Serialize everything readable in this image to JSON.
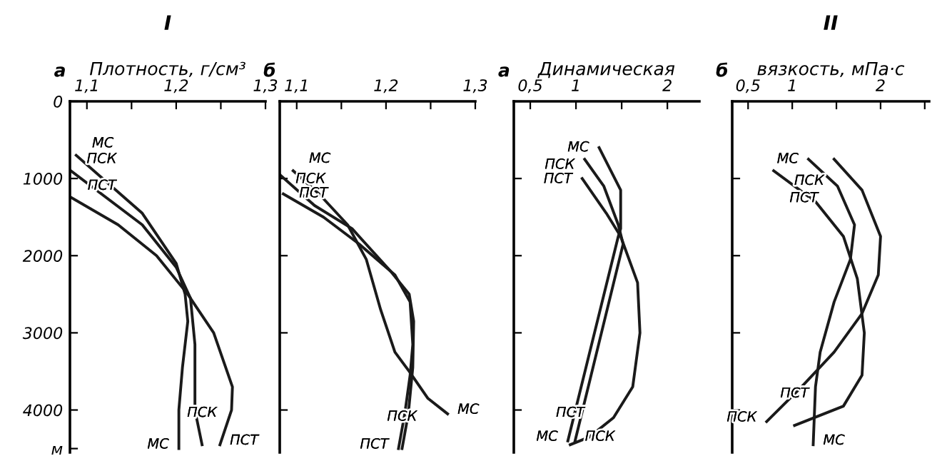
{
  "chart_data": [
    {
      "type": "line",
      "title": "I",
      "xlabel": "Плотность, г/см³",
      "annotations": [
        "а"
      ],
      "xlim": [
        1.081,
        1.3
      ],
      "ylim": [
        4550,
        0
      ],
      "xticks": [
        {
          "value": 1.1,
          "label": "1,1"
        },
        {
          "value": 1.15,
          "label": null
        },
        {
          "value": 1.2,
          "label": "1,2"
        },
        {
          "value": 1.25,
          "label": null
        },
        {
          "value": 1.3,
          "label": "1,3"
        }
      ],
      "yticks": [
        0,
        1000,
        2000,
        3000,
        4000,
        {
          "value": 4500,
          "label": "м"
        }
      ],
      "grid": false,
      "legend": false,
      "marker": "none",
      "line_style": "solid",
      "series": [
        {
          "name": "МС",
          "color": "#1a1a1a",
          "x": [
            1.088,
            1.162,
            1.2,
            1.21,
            1.213,
            1.207,
            1.203,
            1.203
          ],
          "values": [
            700,
            1450,
            2100,
            2500,
            2850,
            3450,
            4000,
            4500
          ]
        },
        {
          "name": "ПСК",
          "color": "#1a1a1a",
          "x": [
            1.082,
            1.162,
            1.2,
            1.216,
            1.221,
            1.221,
            1.229
          ],
          "values": [
            900,
            1600,
            2150,
            2550,
            3150,
            4000,
            4450
          ]
        },
        {
          "name": "ПСТ",
          "color": "#1a1a1a",
          "x": [
            1.083,
            1.135,
            1.178,
            1.213,
            1.242,
            1.263,
            1.262,
            1.249
          ],
          "values": [
            1250,
            1600,
            2000,
            2500,
            3000,
            3700,
            4000,
            4450
          ]
        }
      ]
    },
    {
      "type": "line",
      "annotations": [
        "б"
      ],
      "xlim": [
        1.081,
        1.3
      ],
      "ylim": [
        4550,
        0
      ],
      "tick_labels": "x",
      "xticks": [
        {
          "value": 1.1,
          "label": "1,1"
        },
        {
          "value": 1.15,
          "label": null
        },
        {
          "value": 1.2,
          "label": "1,2"
        },
        {
          "value": 1.25,
          "label": null
        },
        {
          "value": 1.3,
          "label": "1,3"
        }
      ],
      "yticks": [
        0,
        1000,
        2000,
        3000,
        4000
      ],
      "grid": false,
      "legend": false,
      "marker": "none",
      "line_style": "solid",
      "series": [
        {
          "name": "МС",
          "color": "#1a1a1a",
          "x": [
            1.096,
            1.125,
            1.157,
            1.178,
            1.194,
            1.21,
            1.226,
            1.247,
            1.269
          ],
          "values": [
            900,
            1200,
            1600,
            2050,
            2700,
            3250,
            3500,
            3850,
            4050
          ]
        },
        {
          "name": "ПСК",
          "color": "#1a1a1a",
          "x": [
            1.081,
            1.12,
            1.162,
            1.205,
            1.226,
            1.231,
            1.23,
            1.225,
            1.218
          ],
          "values": [
            950,
            1350,
            1650,
            2200,
            2500,
            2850,
            3450,
            4050,
            4500
          ]
        },
        {
          "name": "ПСТ",
          "color": "#1a1a1a",
          "x": [
            1.085,
            1.13,
            1.17,
            1.21,
            1.227,
            1.23,
            1.227,
            1.221,
            1.214
          ],
          "values": [
            1200,
            1500,
            1850,
            2250,
            2600,
            3150,
            3550,
            4050,
            4500
          ]
        }
      ]
    },
    {
      "type": "line",
      "xlabel": "Динамическая",
      "annotations": [
        "а"
      ],
      "xlim": [
        0.32,
        2.35
      ],
      "ylim": [
        4550,
        0
      ],
      "tick_labels": "x",
      "xticks": [
        {
          "value": 0.5,
          "label": "0,5"
        },
        1,
        {
          "value": 1.5,
          "label": null
        },
        2
      ],
      "yticks": [
        0,
        1000,
        2000,
        3000,
        4000
      ],
      "grid": false,
      "legend": false,
      "marker": "none",
      "line_style": "solid",
      "series": [
        {
          "name": "МС",
          "color": "#1a1a1a",
          "x": [
            1.253,
            1.489,
            1.489,
            1.463,
            0.911
          ],
          "values": [
            600,
            1150,
            1650,
            1750,
            4400
          ]
        },
        {
          "name": "ПСК",
          "color": "#1a1a1a",
          "x": [
            1.095,
            1.305,
            1.463,
            1.516,
            0.99
          ],
          "values": [
            750,
            1100,
            1600,
            1850,
            4400
          ]
        },
        {
          "name": "ПСТ",
          "color": "#1a1a1a",
          "x": [
            1.068,
            1.332,
            1.489,
            1.674,
            1.7,
            1.621,
            1.411,
            1.147,
            0.937
          ],
          "values": [
            1000,
            1450,
            1750,
            2350,
            3000,
            3700,
            4100,
            4350,
            4450
          ]
        }
      ]
    },
    {
      "type": "line",
      "title": "II",
      "xlabel": "вязкость, мПа·с",
      "annotations": [
        "б"
      ],
      "xlim": [
        0.32,
        2.55
      ],
      "ylim": [
        4550,
        0
      ],
      "tick_labels": "x",
      "xticks": [
        {
          "value": 0.5,
          "label": "0,5"
        },
        1,
        {
          "value": 1.5,
          "label": null
        },
        2,
        {
          "value": 2.5,
          "label": null
        }
      ],
      "yticks": [
        0,
        1000,
        2000,
        3000,
        4000
      ],
      "grid": false,
      "legend": false,
      "marker": "none",
      "line_style": "solid",
      "series": [
        {
          "name": "МС",
          "color": "#1a1a1a",
          "x": [
            1.184,
            1.513,
            1.705,
            1.658,
            1.474,
            1.316,
            1.263,
            1.237
          ],
          "values": [
            750,
            1100,
            1600,
            2050,
            2600,
            3250,
            3700,
            4450
          ]
        },
        {
          "name": "ПСК",
          "color": "#1a1a1a",
          "x": [
            1.474,
            1.79,
            2.0,
            1.974,
            1.79,
            1.474,
            1.105,
            0.71
          ],
          "values": [
            750,
            1150,
            1750,
            2250,
            2750,
            3250,
            3700,
            4150
          ]
        },
        {
          "name": "ПСТ",
          "color": "#1a1a1a",
          "x": [
            0.79,
            1.263,
            1.579,
            1.737,
            1.816,
            1.79,
            1.579,
            1.026
          ],
          "values": [
            900,
            1300,
            1750,
            2300,
            3000,
            3550,
            3950,
            4200
          ]
        }
      ]
    }
  ]
}
